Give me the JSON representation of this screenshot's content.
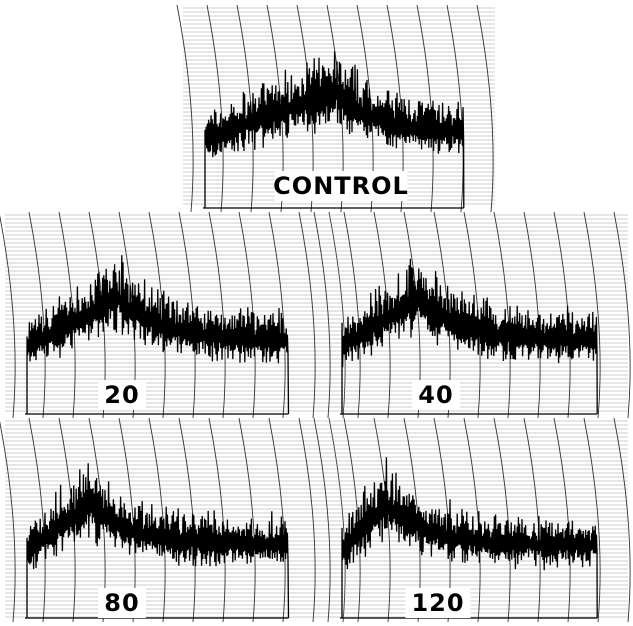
{
  "panels": [
    {
      "label": "CONTROL"
    },
    {
      "label": "20"
    },
    {
      "label": "40"
    },
    {
      "label": "80"
    },
    {
      "label": "120"
    }
  ]
}
